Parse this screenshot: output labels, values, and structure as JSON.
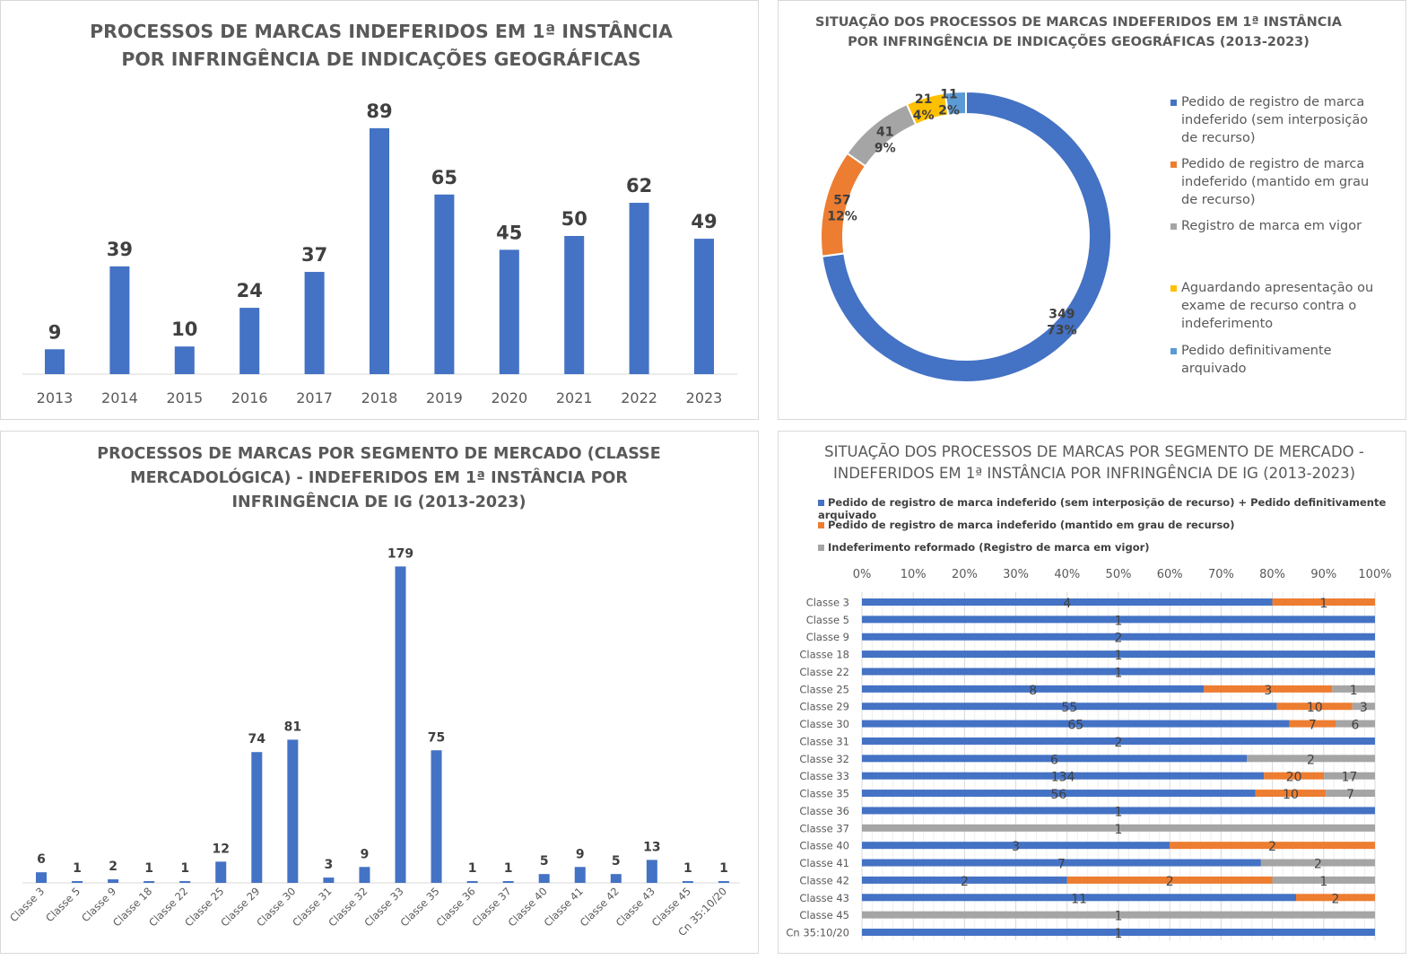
{
  "colors": {
    "blue": "#4472c4",
    "orange": "#ed7d31",
    "gray": "#a5a5a5",
    "yellow": "#ffc000",
    "lightblue": "#5b9bd5",
    "text": "#595959"
  },
  "chart_data": [
    {
      "type": "bar",
      "title": "PROCESSOS DE MARCAS INDEFERIDOS EM 1ª INSTÂNCIA POR INFRINGÊNCIA DE INDICAÇÕES GEOGRÁFICAS",
      "categories": [
        "2013",
        "2014",
        "2015",
        "2016",
        "2017",
        "2018",
        "2019",
        "2020",
        "2021",
        "2022",
        "2023"
      ],
      "values": [
        9,
        39,
        10,
        24,
        37,
        89,
        65,
        45,
        50,
        62,
        49
      ],
      "data_labels": true,
      "grid": false
    },
    {
      "type": "pie",
      "variant": "donut",
      "title": "SITUAÇÃO DOS PROCESSOS DE MARCAS INDEFERIDOS EM 1ª INSTÂNCIA POR INFRINGÊNCIA DE INDICAÇÕES GEOGRÁFICAS (2013-2023)",
      "legend_position": "right",
      "slices": [
        {
          "name": "Pedido de registro de marca indeferido (sem interposição de recurso)",
          "value": 349,
          "percent": "73%",
          "color": "#4472c4"
        },
        {
          "name": "Pedido de registro de marca indeferido (mantido em grau de recurso)",
          "value": 57,
          "percent": "12%",
          "color": "#ed7d31"
        },
        {
          "name": "Registro de marca em vigor",
          "value": 41,
          "percent": "9%",
          "color": "#a5a5a5"
        },
        {
          "name": "Aguardando apresentação ou exame de recurso contra o indeferimento",
          "value": 21,
          "percent": "4%",
          "color": "#ffc000"
        },
        {
          "name": "Pedido definitivamente arquivado",
          "value": 11,
          "percent": "2%",
          "color": "#5b9bd5"
        }
      ]
    },
    {
      "type": "bar",
      "title": "PROCESSOS DE MARCAS POR SEGMENTO DE MERCADO (CLASSE MERCADOLÓGICA) - INDEFERIDOS EM 1ª INSTÂNCIA POR INFRINGÊNCIA DE IG (2013-2023)",
      "categories": [
        "Classe 3",
        "Classe 5",
        "Classe 9",
        "Classe 18",
        "Classe 22",
        "Classe 25",
        "Classe 29",
        "Classe 30",
        "Classe 31",
        "Classe 32",
        "Classe 33",
        "Classe 35",
        "Classe 36",
        "Classe 37",
        "Classe 40",
        "Classe 41",
        "Classe 42",
        "Classe 43",
        "Classe 45",
        "Cn 35:10/20"
      ],
      "values": [
        6,
        1,
        2,
        1,
        1,
        12,
        74,
        81,
        3,
        9,
        179,
        75,
        1,
        1,
        5,
        9,
        5,
        13,
        1,
        1
      ],
      "data_labels": true,
      "grid": false
    },
    {
      "type": "bar",
      "orientation": "horizontal",
      "stacked": "100%",
      "title": "SITUAÇÃO DOS PROCESSOS DE MARCAS POR SEGMENTO DE MERCADO - INDEFERIDOS EM 1ª INSTÂNCIA POR INFRINGÊNCIA DE IG (2013-2023)",
      "legend_position": "top",
      "grid": true,
      "x_ticks": [
        "0%",
        "10%",
        "20%",
        "30%",
        "40%",
        "50%",
        "60%",
        "70%",
        "80%",
        "90%",
        "100%"
      ],
      "categories": [
        "Classe 3",
        "Classe 5",
        "Classe 9",
        "Classe 18",
        "Classe 22",
        "Classe 25",
        "Classe 29",
        "Classe 30",
        "Classe 31",
        "Classe 32",
        "Classe 33",
        "Classe 35",
        "Classe 36",
        "Classe 37",
        "Classe 40",
        "Classe 41",
        "Classe 42",
        "Classe 43",
        "Classe 45",
        "Cn 35:10/20"
      ],
      "series": [
        {
          "name": "Pedido de registro de marca indeferido (sem interposição de recurso) + Pedido definitivamente arquivado",
          "color": "#4472c4",
          "values": [
            4,
            1,
            2,
            1,
            1,
            8,
            55,
            65,
            2,
            6,
            134,
            56,
            1,
            0,
            3,
            7,
            2,
            11,
            0,
            1
          ]
        },
        {
          "name": "Pedido de registro de marca indeferido (mantido em grau de recurso)",
          "color": "#ed7d31",
          "values": [
            1,
            0,
            0,
            0,
            0,
            3,
            10,
            7,
            0,
            0,
            20,
            10,
            0,
            0,
            2,
            0,
            2,
            2,
            0,
            0
          ]
        },
        {
          "name": "Indeferimento reformado (Registro de marca em vigor)",
          "color": "#a5a5a5",
          "values": [
            0,
            0,
            0,
            0,
            0,
            1,
            3,
            6,
            0,
            2,
            17,
            7,
            0,
            1,
            0,
            2,
            1,
            0,
            1,
            0
          ]
        }
      ]
    }
  ]
}
